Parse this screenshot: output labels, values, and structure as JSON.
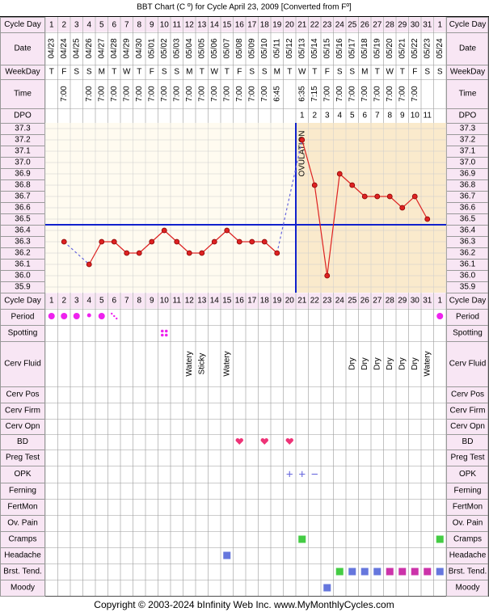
{
  "chart_data": {
    "type": "line",
    "title": "BBT Chart (C º) for Cycle April 23, 2009  [Converted from Fº]",
    "copyright": "Copyright © 2003-2024 bInfinity Web Inc.    www.MyMonthlyCycles.com",
    "ovulation_label": "OVULATION",
    "ylim": [
      35.9,
      37.3
    ],
    "yticks": [
      "37.3",
      "37.2",
      "37.1",
      "37.0",
      "36.9",
      "36.8",
      "36.7",
      "36.6",
      "36.5",
      "36.4",
      "36.3",
      "36.2",
      "36.1",
      "36.0",
      "35.9"
    ],
    "coverline": 36.45,
    "ovulation_after_day": 20,
    "days": [
      1,
      2,
      3,
      4,
      5,
      6,
      7,
      8,
      9,
      10,
      11,
      12,
      13,
      14,
      15,
      16,
      17,
      18,
      19,
      20,
      21,
      22,
      23,
      24,
      25,
      26,
      27,
      28,
      29,
      30,
      31,
      1
    ],
    "dates": [
      "04/23",
      "04/24",
      "04/25",
      "04/26",
      "04/27",
      "04/28",
      "04/29",
      "04/30",
      "05/01",
      "05/02",
      "05/03",
      "05/04",
      "05/05",
      "05/06",
      "05/07",
      "05/08",
      "05/09",
      "05/10",
      "05/11",
      "05/12",
      "05/13",
      "05/14",
      "05/15",
      "05/16",
      "05/17",
      "05/18",
      "05/19",
      "05/20",
      "05/21",
      "05/22",
      "05/23",
      "05/24"
    ],
    "weekdays": [
      "T",
      "F",
      "S",
      "S",
      "M",
      "T",
      "W",
      "T",
      "F",
      "S",
      "S",
      "M",
      "T",
      "W",
      "T",
      "F",
      "S",
      "S",
      "M",
      "T",
      "W",
      "T",
      "F",
      "S",
      "S",
      "M",
      "T",
      "W",
      "T",
      "F",
      "S",
      "S"
    ],
    "times": [
      "",
      "7:00",
      "",
      "7:00",
      "7:00",
      "7:00",
      "7:00",
      "7:00",
      "7:00",
      "7:00",
      "7:00",
      "7:00",
      "7:00",
      "7:00",
      "7:00",
      "7:00",
      "7:00",
      "7:00",
      "6:45",
      "",
      "6:35",
      "7:15",
      "7:00",
      "7:00",
      "7:00",
      "7:00",
      "7:00",
      "7:00",
      "7:00",
      "7:00",
      "",
      ""
    ],
    "dpo": [
      "",
      "",
      "",
      "",
      "",
      "",
      "",
      "",
      "",
      "",
      "",
      "",
      "",
      "",
      "",
      "",
      "",
      "",
      "",
      "",
      "1",
      "2",
      "3",
      "4",
      "5",
      "6",
      "7",
      "8",
      "9",
      "10",
      "11",
      ""
    ],
    "temps": [
      null,
      36.3,
      null,
      36.1,
      36.3,
      36.3,
      36.2,
      36.2,
      36.3,
      36.4,
      36.3,
      36.2,
      36.2,
      36.3,
      36.4,
      36.3,
      36.3,
      36.3,
      36.2,
      null,
      37.2,
      36.8,
      36.0,
      36.9,
      36.8,
      36.7,
      36.7,
      36.7,
      36.6,
      36.7,
      36.5,
      null
    ],
    "period": [
      "big",
      "big",
      "big",
      "small",
      "big",
      "spot",
      "",
      "",
      "",
      "",
      "",
      "",
      "",
      "",
      "",
      "",
      "",
      "",
      "",
      "",
      "",
      "",
      "",
      "",
      "",
      "",
      "",
      "",
      "",
      "",
      "",
      "big"
    ],
    "spotting_days": [
      10
    ],
    "cerv_fluid": [
      "",
      "",
      "",
      "",
      "",
      "",
      "",
      "",
      "",
      "",
      "",
      "Watery",
      "Sticky",
      "",
      "Watery",
      "",
      "",
      "",
      "",
      "",
      "",
      "",
      "",
      "",
      "Dry",
      "Dry",
      "Dry",
      "Dry",
      "Dry",
      "Dry",
      "Watery",
      ""
    ],
    "bd_days": [
      16,
      18,
      20
    ],
    "opk": [
      "",
      "",
      "",
      "",
      "",
      "",
      "",
      "",
      "",
      "",
      "",
      "",
      "",
      "",
      "",
      "",
      "",
      "",
      "",
      "+",
      "+",
      "−",
      "",
      "",
      "",
      "",
      "",
      "",
      "",
      "",
      "",
      ""
    ],
    "cramps_days": [
      21,
      32
    ],
    "cramps_color": "#44cc44",
    "headache_days": [
      15
    ],
    "headache_color": "#6677dd",
    "brst_tend": [
      "",
      "",
      "",
      "",
      "",
      "",
      "",
      "",
      "",
      "",
      "",
      "",
      "",
      "",
      "",
      "",
      "",
      "",
      "",
      "",
      "",
      "",
      "",
      "green",
      "blue",
      "blue",
      "blue",
      "magenta",
      "magenta",
      "magenta",
      "magenta",
      "blue"
    ],
    "moody_days": [
      23
    ],
    "moody_color": "#6677dd",
    "colors": {
      "header_bg": "#f8e6f4",
      "pre_ov": "#fffbf0",
      "post_ov": "#faeacc",
      "line": "#dd2222",
      "coverline": "#1122cc",
      "ovline": "#1122cc",
      "period": "#ee22ee",
      "bd": "#ee3377",
      "opk": "#6666dd",
      "green": "#44cc44",
      "blue": "#6677dd",
      "magenta": "#cc33aa"
    }
  },
  "labels": {
    "cycle_day": "Cycle Day",
    "date": "Date",
    "weekday": "WeekDay",
    "time": "Time",
    "dpo": "DPO",
    "period": "Period",
    "spotting": "Spotting",
    "cerv_fluid": "Cerv Fluid",
    "cerv_pos": "Cerv Pos",
    "cerv_firm": "Cerv Firm",
    "cerv_opn": "Cerv Opn",
    "bd": "BD",
    "preg_test": "Preg Test",
    "opk": "OPK",
    "ferning": "Ferning",
    "fertmon": "FertMon",
    "ov_pain": "Ov. Pain",
    "cramps": "Cramps",
    "headache": "Headache",
    "brst_tend": "Brst. Tend.",
    "moody": "Moody"
  }
}
